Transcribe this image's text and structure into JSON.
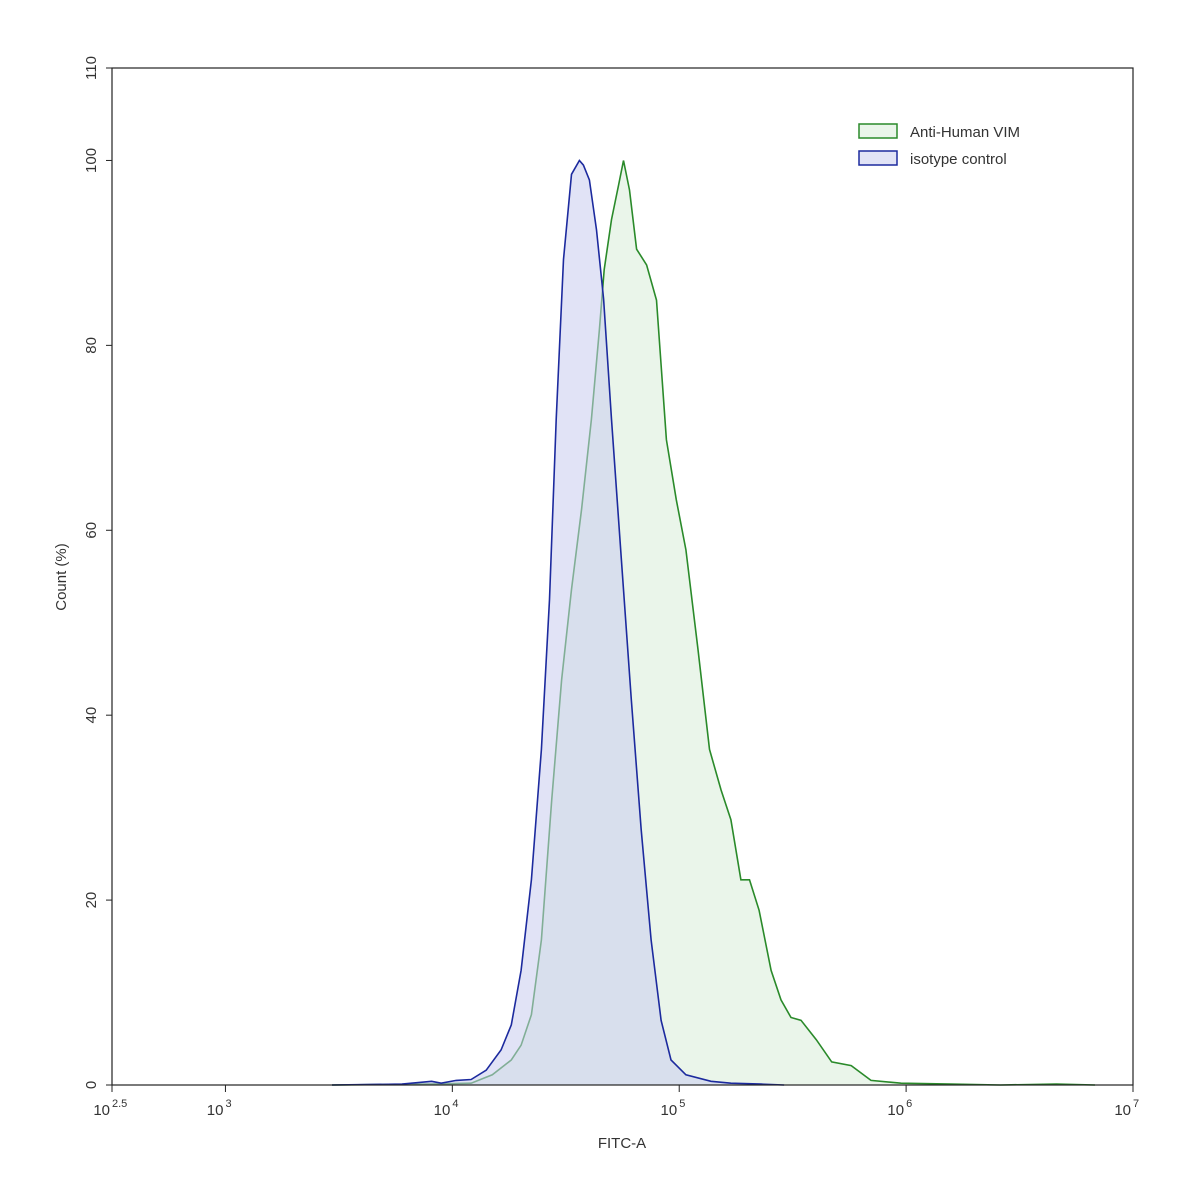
{
  "chart_data": {
    "type": "histogram-overlay",
    "x_label": "FITC-A",
    "y_label": "Count  (%)",
    "xscale": "log",
    "xlim": [
      316.227766,
      10000000
    ],
    "ylim": [
      0,
      110
    ],
    "xticks": [
      {
        "value": 316.227766,
        "label": "10",
        "exponent": "2.5"
      },
      {
        "value": 1000,
        "label": "10",
        "exponent": "3"
      },
      {
        "value": 10000,
        "label": "10",
        "exponent": "4"
      },
      {
        "value": 100000,
        "label": "10",
        "exponent": "5"
      },
      {
        "value": 1000000,
        "label": "10",
        "exponent": "6"
      },
      {
        "value": 10000000,
        "label": "10",
        "exponent": "7"
      }
    ],
    "yticks": [
      0,
      20,
      40,
      60,
      80,
      100,
      110
    ],
    "legend": "upper right",
    "series": [
      {
        "name": "Anti-Human VIM",
        "color": "#2a8a2a",
        "fill": "#d8ecd8",
        "x": [
          2950,
          8100,
          12100,
          15000,
          18200,
          20100,
          22300,
          24700,
          27400,
          30300,
          33500,
          37100,
          41000,
          44500,
          46700,
          50300,
          54100,
          56800,
          60400,
          64900,
          71800,
          79400,
          87800,
          97100,
          107000,
          121000,
          136000,
          153000,
          169000,
          187000,
          204000,
          225000,
          254000,
          281000,
          311000,
          344000,
          402000,
          470000,
          573000,
          700000,
          950000,
          1570000,
          2600000,
          4600000,
          6800000
        ],
        "values": [
          0,
          0.1,
          0.2,
          1.1,
          2.7,
          4.3,
          7.6,
          15.7,
          30.8,
          43.8,
          53.6,
          62.2,
          72,
          81.7,
          88.2,
          93.6,
          97.4,
          100,
          96.8,
          90.4,
          88.7,
          84.9,
          69.8,
          63.3,
          57.9,
          47.1,
          36.3,
          31.9,
          28.7,
          22.2,
          22.2,
          18.9,
          12.4,
          9.2,
          7.3,
          7,
          4.9,
          2.5,
          2.1,
          0.5,
          0.2,
          0.1,
          0,
          0.1,
          0
        ]
      },
      {
        "name": "isotype control",
        "color": "#1c2a9e",
        "fill": "#c9ccef",
        "x": [
          2950,
          6000,
          8100,
          8930,
          10400,
          12100,
          14100,
          16400,
          18200,
          20100,
          22300,
          24700,
          26800,
          28700,
          30900,
          33500,
          36300,
          37800,
          40200,
          43200,
          46400,
          50300,
          55600,
          61500,
          68000,
          75200,
          83200,
          92000,
          107000,
          138000,
          169000,
          230000,
          290000
        ],
        "values": [
          0,
          0.1,
          0.4,
          0.2,
          0.5,
          0.6,
          1.6,
          3.8,
          6.5,
          12.4,
          22.2,
          36.3,
          52.5,
          72,
          89.3,
          98.5,
          100,
          99.5,
          97.9,
          92.5,
          85,
          72,
          56.8,
          41.7,
          27.6,
          15.7,
          7,
          2.7,
          1.1,
          0.4,
          0.2,
          0.1,
          0
        ]
      }
    ]
  }
}
